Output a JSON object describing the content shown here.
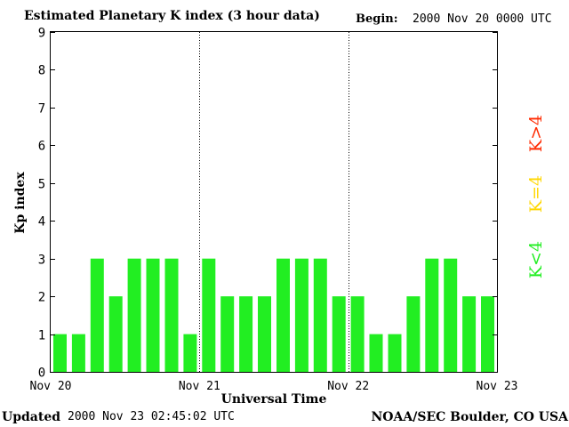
{
  "header": {
    "title": "Estimated Planetary K index (3 hour data)",
    "begin_label": "Begin:",
    "begin_value": "2000 Nov 20 0000 UTC"
  },
  "footer": {
    "updated_label": "Updated",
    "updated_value": "2000 Nov 23 02:45:02 UTC",
    "source": "NOAA/SEC Boulder, CO USA"
  },
  "legend": [
    {
      "label": "K>4",
      "color": "#ff2a00"
    },
    {
      "label": "K=4",
      "color": "#ffd700"
    },
    {
      "label": "K<4",
      "color": "#22ee22"
    }
  ],
  "chart_data": {
    "type": "bar",
    "title": "Estimated Planetary K index (3 hour data)",
    "xlabel": "Universal Time",
    "ylabel": "Kp index",
    "ylim": [
      0,
      9
    ],
    "yticks": [
      0,
      1,
      2,
      3,
      4,
      5,
      6,
      7,
      8,
      9
    ],
    "xtick_labels": [
      "Nov 20",
      "Nov 21",
      "Nov 22",
      "Nov 23"
    ],
    "day_dividers": [
      "Nov 21",
      "Nov 22"
    ],
    "bars_per_day": 8,
    "values": [
      1,
      1,
      3,
      2,
      3,
      3,
      3,
      1,
      3,
      2,
      2,
      2,
      3,
      3,
      3,
      2,
      2,
      1,
      1,
      2,
      3,
      3,
      2,
      2
    ],
    "bar_color": "#22ee22"
  }
}
